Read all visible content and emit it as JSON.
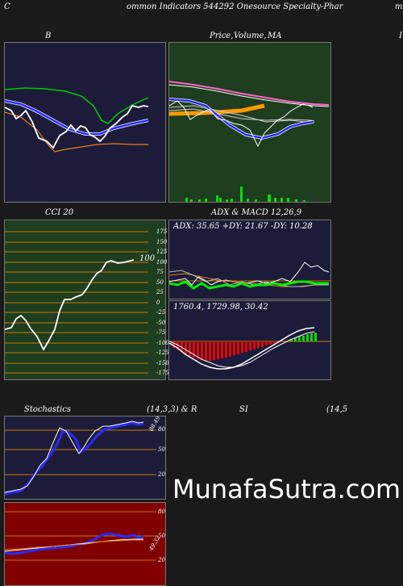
{
  "header": {
    "left": "C",
    "title": "ommon  Indicators 544292  Onesource  Specialty-Phar",
    "right": "m"
  },
  "panels": {
    "b": {
      "title": "B"
    },
    "price": {
      "title_a": "Price,",
      "title_b": "Volume,",
      "title_c": "MA",
      "right_label": "I"
    },
    "cci": {
      "title": "CCI 20",
      "value_label": "100",
      "ticks": [
        "175",
        "150",
        "125",
        "100",
        "75",
        "50",
        "25",
        "0",
        "-25",
        "-50",
        "-75",
        "-100",
        "-125",
        "-150",
        "-175"
      ]
    },
    "adx": {
      "title": "ADX  & MACD 12,26,9",
      "readout": "ADX: 35.65  +DY: 21.67 -DY: 10.28"
    },
    "macd": {
      "readout": "1760.4,    1729.98,    30.42"
    },
    "stoch": {
      "title_a": "Stochastics",
      "title_b": "(14,3,3) & R",
      "value_label": "88.49",
      "ticks": [
        "80",
        "50",
        "20"
      ]
    },
    "rsi": {
      "title_a": "SI",
      "title_b": "(14,5",
      "value_label": "49.32",
      "ticks": [
        "80",
        "50",
        "20"
      ]
    }
  },
  "watermark": "MunafaSutra.com",
  "colors": {
    "blue_panel": "#1c1c3a",
    "green_panel": "#1f3d1f",
    "red_panel": "#800000",
    "grid_orange": "#c87a00",
    "bright_green": "#00ee00",
    "line_blue": "#2a2aff"
  }
}
